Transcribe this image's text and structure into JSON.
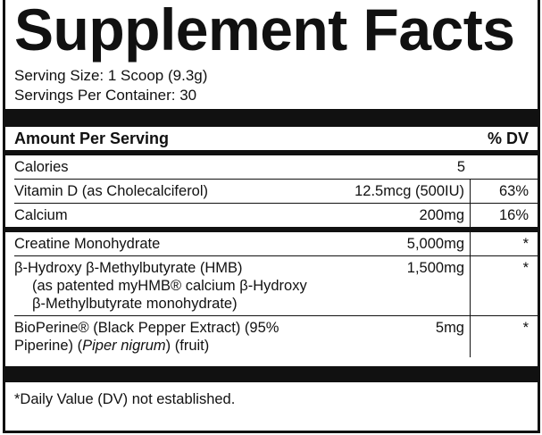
{
  "header": {
    "title": "Supplement Facts",
    "serving_size": "Serving Size: 1 Scoop (9.3g)",
    "servings_per_container": "Servings Per Container: 30"
  },
  "table": {
    "columns": [
      "Amount Per Serving",
      "% DV"
    ],
    "groups": [
      [
        {
          "name": [
            "Calories"
          ],
          "amount": "5",
          "dv": ""
        },
        {
          "name": [
            "Vitamin D (as Cholecalciferol)"
          ],
          "amount": "12.5mcg (500IU)",
          "dv": "63%"
        },
        {
          "name": [
            "Calcium"
          ],
          "amount": "200mg",
          "dv": "16%"
        }
      ],
      [
        {
          "name": [
            "Creatine Monohydrate"
          ],
          "amount": "5,000mg",
          "dv": "*"
        },
        {
          "name": [
            "β-Hydroxy β-Methylbutyrate (HMB)"
          ],
          "sub": "(as patented myHMB® calcium β-Hydroxy β-Methylbutyrate monohydrate)",
          "amount": "1,500mg",
          "dv": "*"
        },
        {
          "name": [
            "BioPerine® (Black Pepper Extract) (95% Piperine) (",
            "Piper nigrum",
            ") (fruit)"
          ],
          "amount": "5mg",
          "dv": "*"
        }
      ]
    ]
  },
  "footnote": "*Daily Value (DV) not established."
}
